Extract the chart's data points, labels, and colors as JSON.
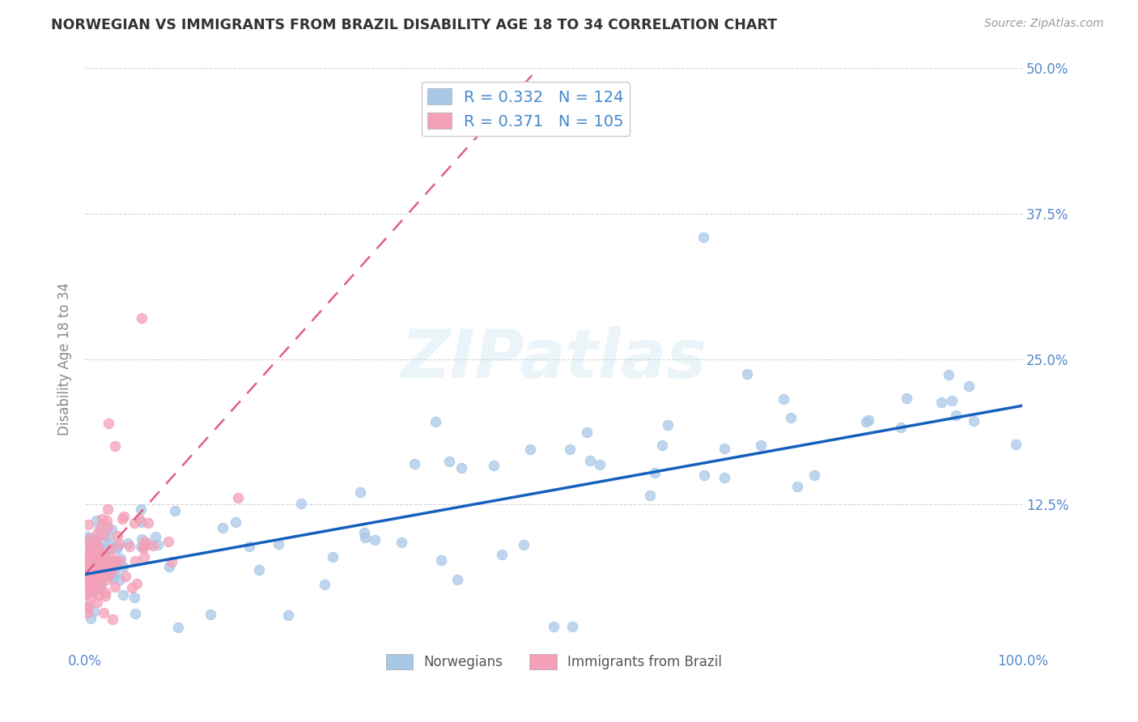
{
  "title": "NORWEGIAN VS IMMIGRANTS FROM BRAZIL DISABILITY AGE 18 TO 34 CORRELATION CHART",
  "source": "Source: ZipAtlas.com",
  "ylabel": "Disability Age 18 to 34",
  "xlim": [
    0.0,
    1.0
  ],
  "ylim": [
    0.0,
    0.5
  ],
  "r_norwegian": 0.332,
  "n_norwegian": 124,
  "r_brazil": 0.371,
  "n_brazil": 105,
  "color_norwegian": "#A8C8E8",
  "color_brazil": "#F4A0B8",
  "color_line_norwegian": "#1560BD",
  "color_line_brazil": "#E06080",
  "background_color": "#FFFFFF",
  "grid_color": "#CCCCCC",
  "tick_color": "#5588CC",
  "ytick_values": [
    0.0,
    0.125,
    0.25,
    0.375,
    0.5
  ],
  "ytick_labels": [
    "",
    "12.5%",
    "25.0%",
    "37.5%",
    "50.0%"
  ],
  "xtick_values": [
    0.0,
    1.0
  ],
  "xtick_labels": [
    "0.0%",
    "100.0%"
  ]
}
